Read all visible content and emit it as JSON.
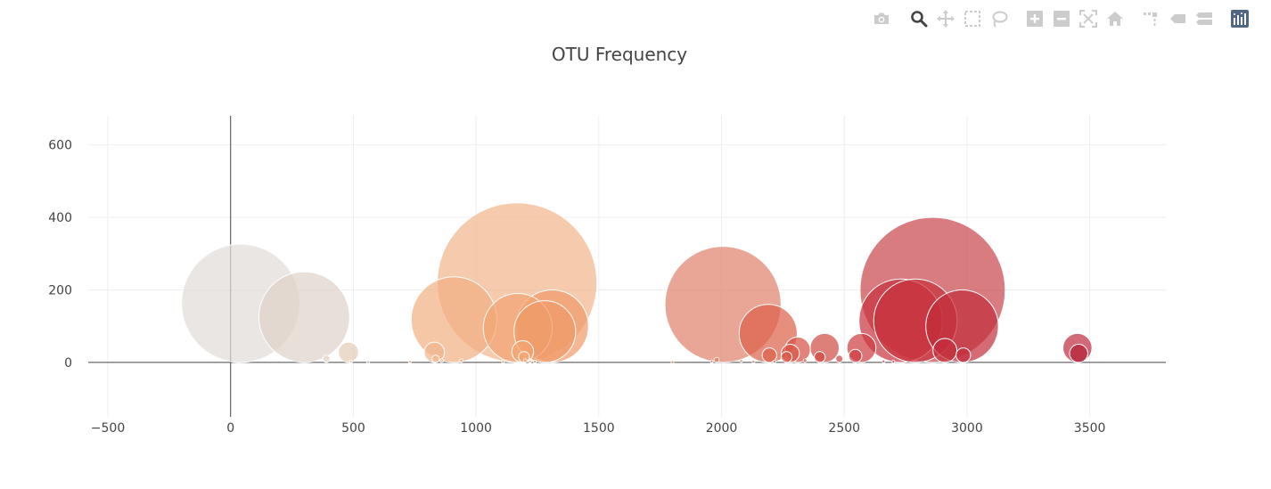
{
  "modebar": {
    "buttons": [
      {
        "name": "camera-icon",
        "tooltip": "Download plot as a png"
      },
      {
        "name": "zoom-icon",
        "tooltip": "Zoom"
      },
      {
        "name": "pan-icon",
        "tooltip": "Pan"
      },
      {
        "name": "box-select-icon",
        "tooltip": "Box Select"
      },
      {
        "name": "lasso-select-icon",
        "tooltip": "Lasso Select"
      },
      {
        "name": "zoom-in-icon",
        "tooltip": "Zoom in"
      },
      {
        "name": "zoom-out-icon",
        "tooltip": "Zoom out"
      },
      {
        "name": "autoscale-icon",
        "tooltip": "Autoscale"
      },
      {
        "name": "reset-axes-icon",
        "tooltip": "Reset axes"
      },
      {
        "name": "spike-lines-icon",
        "tooltip": "Toggle Spike Lines"
      },
      {
        "name": "hover-closest-icon",
        "tooltip": "Show closest data on hover"
      },
      {
        "name": "hover-compare-icon",
        "tooltip": "Compare data on hover"
      },
      {
        "name": "plotly-logo-icon",
        "tooltip": "Produced with Plotly"
      }
    ],
    "active_color": "#444444",
    "inactive_color": "#cccccc",
    "logo_color": "#506784"
  },
  "chart_data": {
    "type": "scatter",
    "mode": "markers",
    "marker_sizing": "bubble size proportional to y value",
    "title": "OTU Frequency",
    "xlabel": "",
    "ylabel": "",
    "xlim": [
      -580,
      3810
    ],
    "ylim": [
      -150,
      680
    ],
    "x_ticks": [
      -500,
      0,
      500,
      1000,
      1500,
      2000,
      2500,
      3000,
      3500
    ],
    "x_tick_labels": [
      "−500",
      "0",
      "500",
      "1000",
      "1500",
      "2000",
      "2500",
      "3000",
      "3500"
    ],
    "y_ticks": [
      0,
      200,
      400,
      600
    ],
    "y_tick_labels": [
      "0",
      "200",
      "400",
      "600"
    ],
    "grid": true,
    "zero_lines": true,
    "legend": "none",
    "colorscale": "Reds (light grey to dark red by x)",
    "marker_opacity": 0.7,
    "marker_line_color": "#ffffff",
    "points": [
      {
        "x": 41,
        "y": 163,
        "color": "#e0dcd9"
      },
      {
        "x": 300,
        "y": 125,
        "color": "#ded2c7"
      },
      {
        "x": 390,
        "y": 10,
        "color": "#ded0c2"
      },
      {
        "x": 480,
        "y": 28,
        "color": "#e2ccb6"
      },
      {
        "x": 490,
        "y": 2,
        "color": "#e2ccb6"
      },
      {
        "x": 560,
        "y": 1,
        "color": "#e2ccb6"
      },
      {
        "x": 730,
        "y": 2,
        "color": "#f1bb95"
      },
      {
        "x": 830,
        "y": 28,
        "color": "#f1b58b"
      },
      {
        "x": 835,
        "y": 10,
        "color": "#f1b58b"
      },
      {
        "x": 860,
        "y": 5,
        "color": "#f1b58b"
      },
      {
        "x": 910,
        "y": 118,
        "color": "#f1af82"
      },
      {
        "x": 940,
        "y": 5,
        "color": "#f1af82"
      },
      {
        "x": 1110,
        "y": 2,
        "color": "#f2a472"
      },
      {
        "x": 1167,
        "y": 220,
        "color": "#f2b389"
      },
      {
        "x": 1170,
        "y": 95,
        "color": "#f2a472"
      },
      {
        "x": 1190,
        "y": 30,
        "color": "#f2a472"
      },
      {
        "x": 1195,
        "y": 15,
        "color": "#f2a472"
      },
      {
        "x": 1200,
        "y": 5,
        "color": "#f2a472"
      },
      {
        "x": 1220,
        "y": 3,
        "color": "#f2a472"
      },
      {
        "x": 1240,
        "y": 2,
        "color": "#f2a472"
      },
      {
        "x": 1280,
        "y": 85,
        "color": "#f09a68"
      },
      {
        "x": 1310,
        "y": 100,
        "color": "#f09a68"
      },
      {
        "x": 1800,
        "y": 1,
        "color": "#e88a70"
      },
      {
        "x": 1960,
        "y": 3,
        "color": "#e27a5d"
      },
      {
        "x": 1980,
        "y": 7,
        "color": "#e27a5d"
      },
      {
        "x": 2006,
        "y": 160,
        "color": "#e0806a"
      },
      {
        "x": 2080,
        "y": 4,
        "color": "#df6f55"
      },
      {
        "x": 2130,
        "y": 2,
        "color": "#df6f55"
      },
      {
        "x": 2190,
        "y": 80,
        "color": "#dc5f49"
      },
      {
        "x": 2195,
        "y": 20,
        "color": "#dc5f49"
      },
      {
        "x": 2215,
        "y": 2,
        "color": "#dc5f49"
      },
      {
        "x": 2265,
        "y": 15,
        "color": "#d95545"
      },
      {
        "x": 2280,
        "y": 25,
        "color": "#d95545"
      },
      {
        "x": 2310,
        "y": 35,
        "color": "#d74d42"
      },
      {
        "x": 2340,
        "y": 5,
        "color": "#d74d42"
      },
      {
        "x": 2400,
        "y": 15,
        "color": "#d4453f"
      },
      {
        "x": 2420,
        "y": 40,
        "color": "#cf4a42"
      },
      {
        "x": 2480,
        "y": 10,
        "color": "#d14040"
      },
      {
        "x": 2545,
        "y": 18,
        "color": "#cd3a3e"
      },
      {
        "x": 2570,
        "y": 40,
        "color": "#cd3a3e"
      },
      {
        "x": 2660,
        "y": 3,
        "color": "#cb353d"
      },
      {
        "x": 2700,
        "y": 2,
        "color": "#cb353d"
      },
      {
        "x": 2730,
        "y": 115,
        "color": "#c8303c"
      },
      {
        "x": 2790,
        "y": 115,
        "color": "#c8303c"
      },
      {
        "x": 2860,
        "y": 200,
        "color": "#c8444a"
      },
      {
        "x": 2910,
        "y": 33,
        "color": "#c22c3a"
      },
      {
        "x": 2980,
        "y": 100,
        "color": "#c22c3a"
      },
      {
        "x": 2985,
        "y": 20,
        "color": "#c22c3a"
      },
      {
        "x": 3450,
        "y": 40,
        "color": "#c02a3e"
      },
      {
        "x": 3455,
        "y": 25,
        "color": "#b41f34"
      }
    ]
  }
}
